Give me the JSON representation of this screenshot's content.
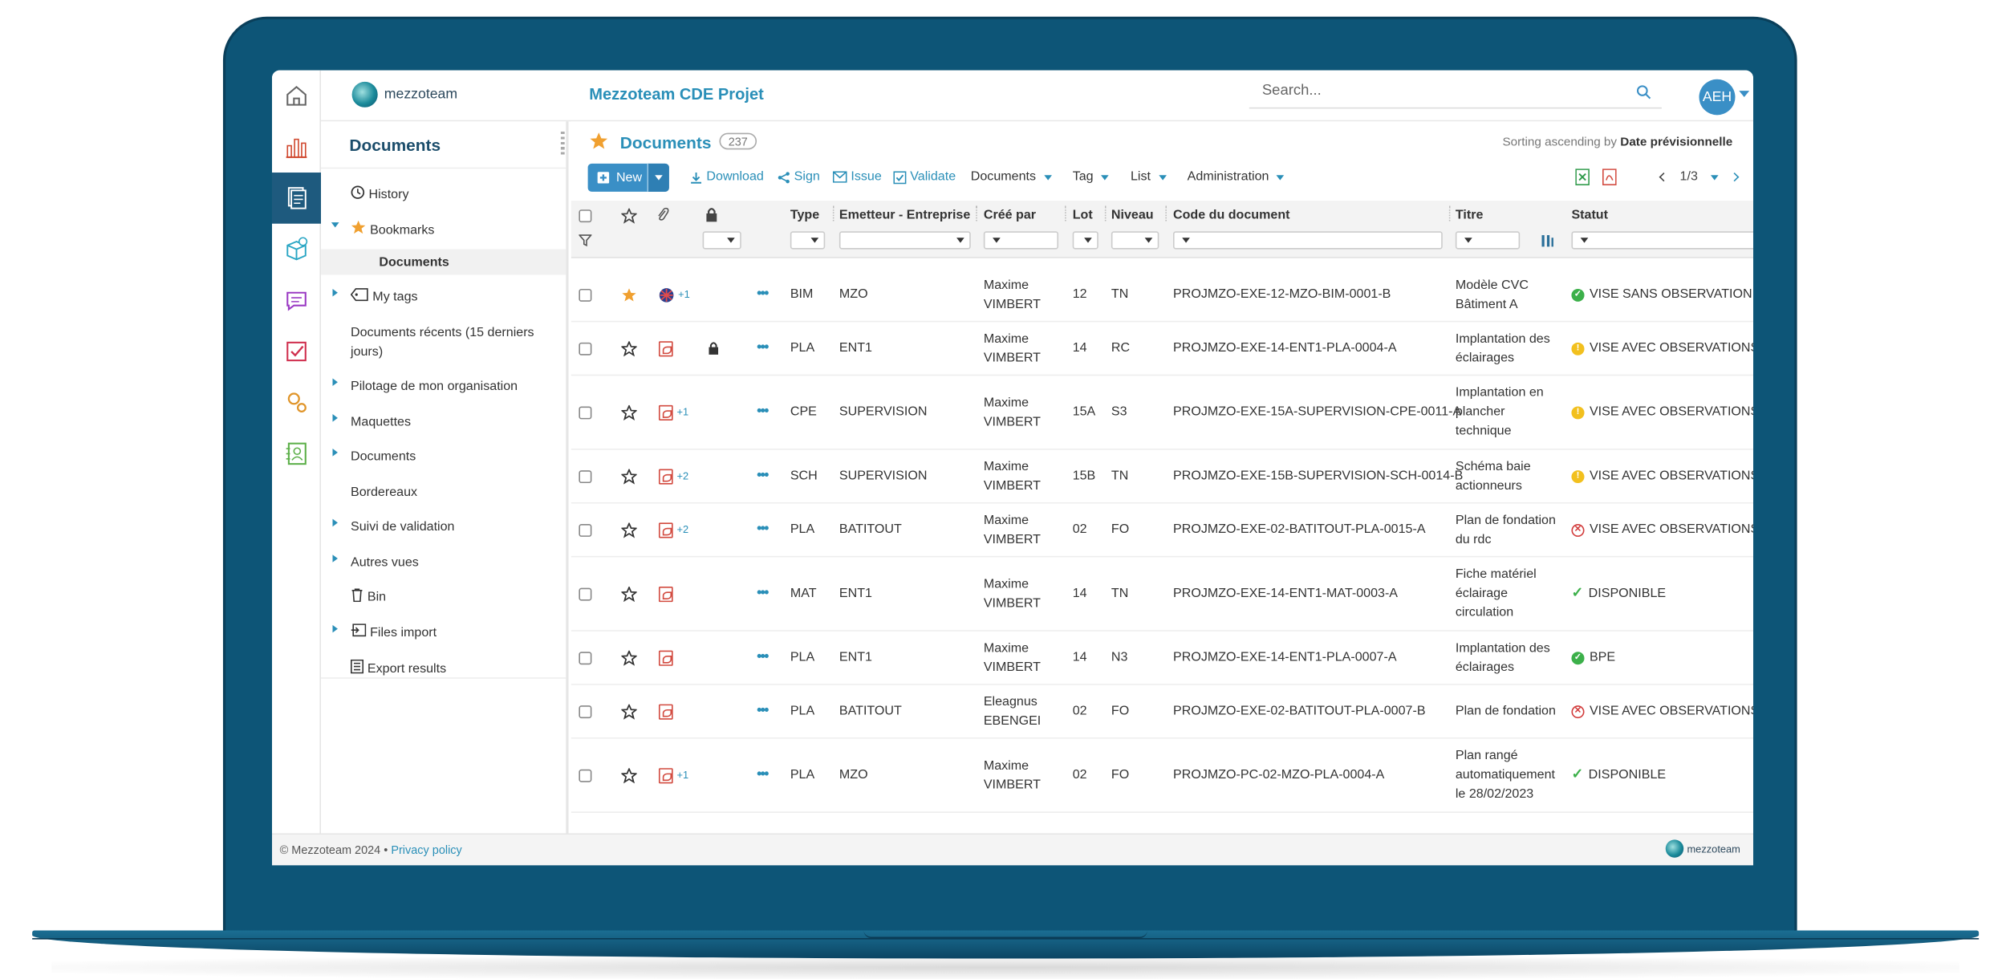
{
  "app": {
    "title": "Mezzoteam CDE Projet",
    "logo_text": "mezzoteam",
    "avatar_initials": "AEH",
    "search_placeholder": "Search..."
  },
  "sidebar": {
    "title": "Documents",
    "items": [
      {
        "label": "History",
        "icon": "clock-icon",
        "expander": "none"
      },
      {
        "label": "Bookmarks",
        "icon": "star-icon",
        "expander": "open"
      },
      {
        "label": "Documents",
        "icon": "",
        "expander": "none",
        "selected": true
      },
      {
        "label": "My tags",
        "icon": "tag-icon",
        "expander": "closed"
      },
      {
        "label": "Documents récents (15 derniers jours)",
        "icon": "",
        "expander": "none"
      },
      {
        "label": "Pilotage de mon organisation",
        "icon": "",
        "expander": "closed"
      },
      {
        "label": "Maquettes",
        "icon": "",
        "expander": "closed"
      },
      {
        "label": "Documents",
        "icon": "",
        "expander": "closed"
      },
      {
        "label": "Bordereaux",
        "icon": "",
        "expander": "none"
      },
      {
        "label": "Suivi de validation",
        "icon": "",
        "expander": "closed"
      },
      {
        "label": "Autres vues",
        "icon": "",
        "expander": "closed"
      },
      {
        "label": "Bin",
        "icon": "trash-icon",
        "expander": "none"
      },
      {
        "label": "Files import",
        "icon": "import-icon",
        "expander": "closed"
      },
      {
        "label": "Export results",
        "icon": "export-icon",
        "expander": "none"
      }
    ]
  },
  "main": {
    "title": "Documents",
    "count": "237",
    "sorting_prefix": "Sorting ascending by",
    "sorting_field": "Date prévisionnelle",
    "toolbar": {
      "new": "New",
      "download": "Download",
      "sign": "Sign",
      "issue": "Issue",
      "validate": "Validate",
      "documents": "Documents",
      "tag": "Tag",
      "list": "List",
      "administration": "Administration",
      "pagination": "1/3"
    },
    "columns": {
      "type": "Type",
      "emetteur": "Emetteur - Entreprise",
      "cree_par": "Créé par",
      "lot": "Lot",
      "niveau": "Niveau",
      "code": "Code du document",
      "titre": "Titre",
      "statut": "Statut"
    },
    "rows": [
      {
        "starred": true,
        "file": "bim",
        "extra": "+1",
        "locked": false,
        "type": "BIM",
        "emetteur": "MZO",
        "cree_par": "Maxime VIMBERT",
        "lot": "12",
        "niveau": "TN",
        "code": "PROJMZO-EXE-12-MZO-BIM-0001-B",
        "titre": "Modèle CVC Bâtiment A",
        "statut": "VISE SANS OBSERVATION",
        "statut_kind": "ok"
      },
      {
        "starred": false,
        "file": "pdf",
        "extra": "",
        "locked": true,
        "type": "PLA",
        "emetteur": "ENT1",
        "cree_par": "Maxime VIMBERT",
        "lot": "14",
        "niveau": "RC",
        "code": "PROJMZO-EXE-14-ENT1-PLA-0004-A",
        "titre": "Implantation des éclairages",
        "statut": "VISE AVEC OBSERVATIONS",
        "statut_kind": "warn"
      },
      {
        "starred": false,
        "file": "pdf",
        "extra": "+1",
        "locked": false,
        "type": "CPE",
        "emetteur": "SUPERVISION",
        "cree_par": "Maxime VIMBERT",
        "lot": "15A",
        "niveau": "S3",
        "code": "PROJMZO-EXE-15A-SUPERVISION-CPE-0011-A",
        "titre": "Implantation en plancher technique",
        "statut": "VISE AVEC OBSERVATIONS",
        "statut_kind": "warn"
      },
      {
        "starred": false,
        "file": "pdf",
        "extra": "+2",
        "locked": false,
        "type": "SCH",
        "emetteur": "SUPERVISION",
        "cree_par": "Maxime VIMBERT",
        "lot": "15B",
        "niveau": "TN",
        "code": "PROJMZO-EXE-15B-SUPERVISION-SCH-0014-B",
        "titre": "Schéma baie actionneurs",
        "statut": "VISE AVEC OBSERVATIONS",
        "statut_kind": "warn"
      },
      {
        "starred": false,
        "file": "pdf",
        "extra": "+2",
        "locked": false,
        "type": "PLA",
        "emetteur": "BATITOUT",
        "cree_par": "Maxime VIMBERT",
        "lot": "02",
        "niveau": "FO",
        "code": "PROJMZO-EXE-02-BATITOUT-PLA-0015-A",
        "titre": "Plan de fondation du rdc",
        "statut": "VISE AVEC OBSERVATIONS F",
        "statut_kind": "ko"
      },
      {
        "starred": false,
        "file": "pdf",
        "extra": "",
        "locked": false,
        "type": "MAT",
        "emetteur": "ENT1",
        "cree_par": "Maxime VIMBERT",
        "lot": "14",
        "niveau": "TN",
        "code": "PROJMZO-EXE-14-ENT1-MAT-0003-A",
        "titre": "Fiche matériel éclairage circulation",
        "statut": "DISPONIBLE",
        "statut_kind": "check"
      },
      {
        "starred": false,
        "file": "pdf",
        "extra": "",
        "locked": false,
        "type": "PLA",
        "emetteur": "ENT1",
        "cree_par": "Maxime VIMBERT",
        "lot": "14",
        "niveau": "N3",
        "code": "PROJMZO-EXE-14-ENT1-PLA-0007-A",
        "titre": "Implantation des éclairages",
        "statut": "BPE",
        "statut_kind": "ok"
      },
      {
        "starred": false,
        "file": "pdf",
        "extra": "",
        "locked": false,
        "type": "PLA",
        "emetteur": "BATITOUT",
        "cree_par": "Eleagnus EBENGEI",
        "lot": "02",
        "niveau": "FO",
        "code": "PROJMZO-EXE-02-BATITOUT-PLA-0007-B",
        "titre": "Plan de fondation",
        "statut": "VISE AVEC OBSERVATIONS F",
        "statut_kind": "ko"
      },
      {
        "starred": false,
        "file": "pdf",
        "extra": "+1",
        "locked": false,
        "type": "PLA",
        "emetteur": "MZO",
        "cree_par": "Maxime VIMBERT",
        "lot": "02",
        "niveau": "FO",
        "code": "PROJMZO-PC-02-MZO-PLA-0004-A",
        "titre": "Plan rangé automatiquement le 28/02/2023",
        "statut": "DISPONIBLE",
        "statut_kind": "check"
      }
    ]
  },
  "footer": {
    "copyright": "© Mezzoteam 2024 •",
    "privacy": "Privacy policy",
    "logo_text": "mezzoteam"
  },
  "colors": {
    "accent": "#2a8fb8",
    "laptop": "#0d5577",
    "primary_button": "#3a8fc6",
    "star": "#f0a030"
  }
}
